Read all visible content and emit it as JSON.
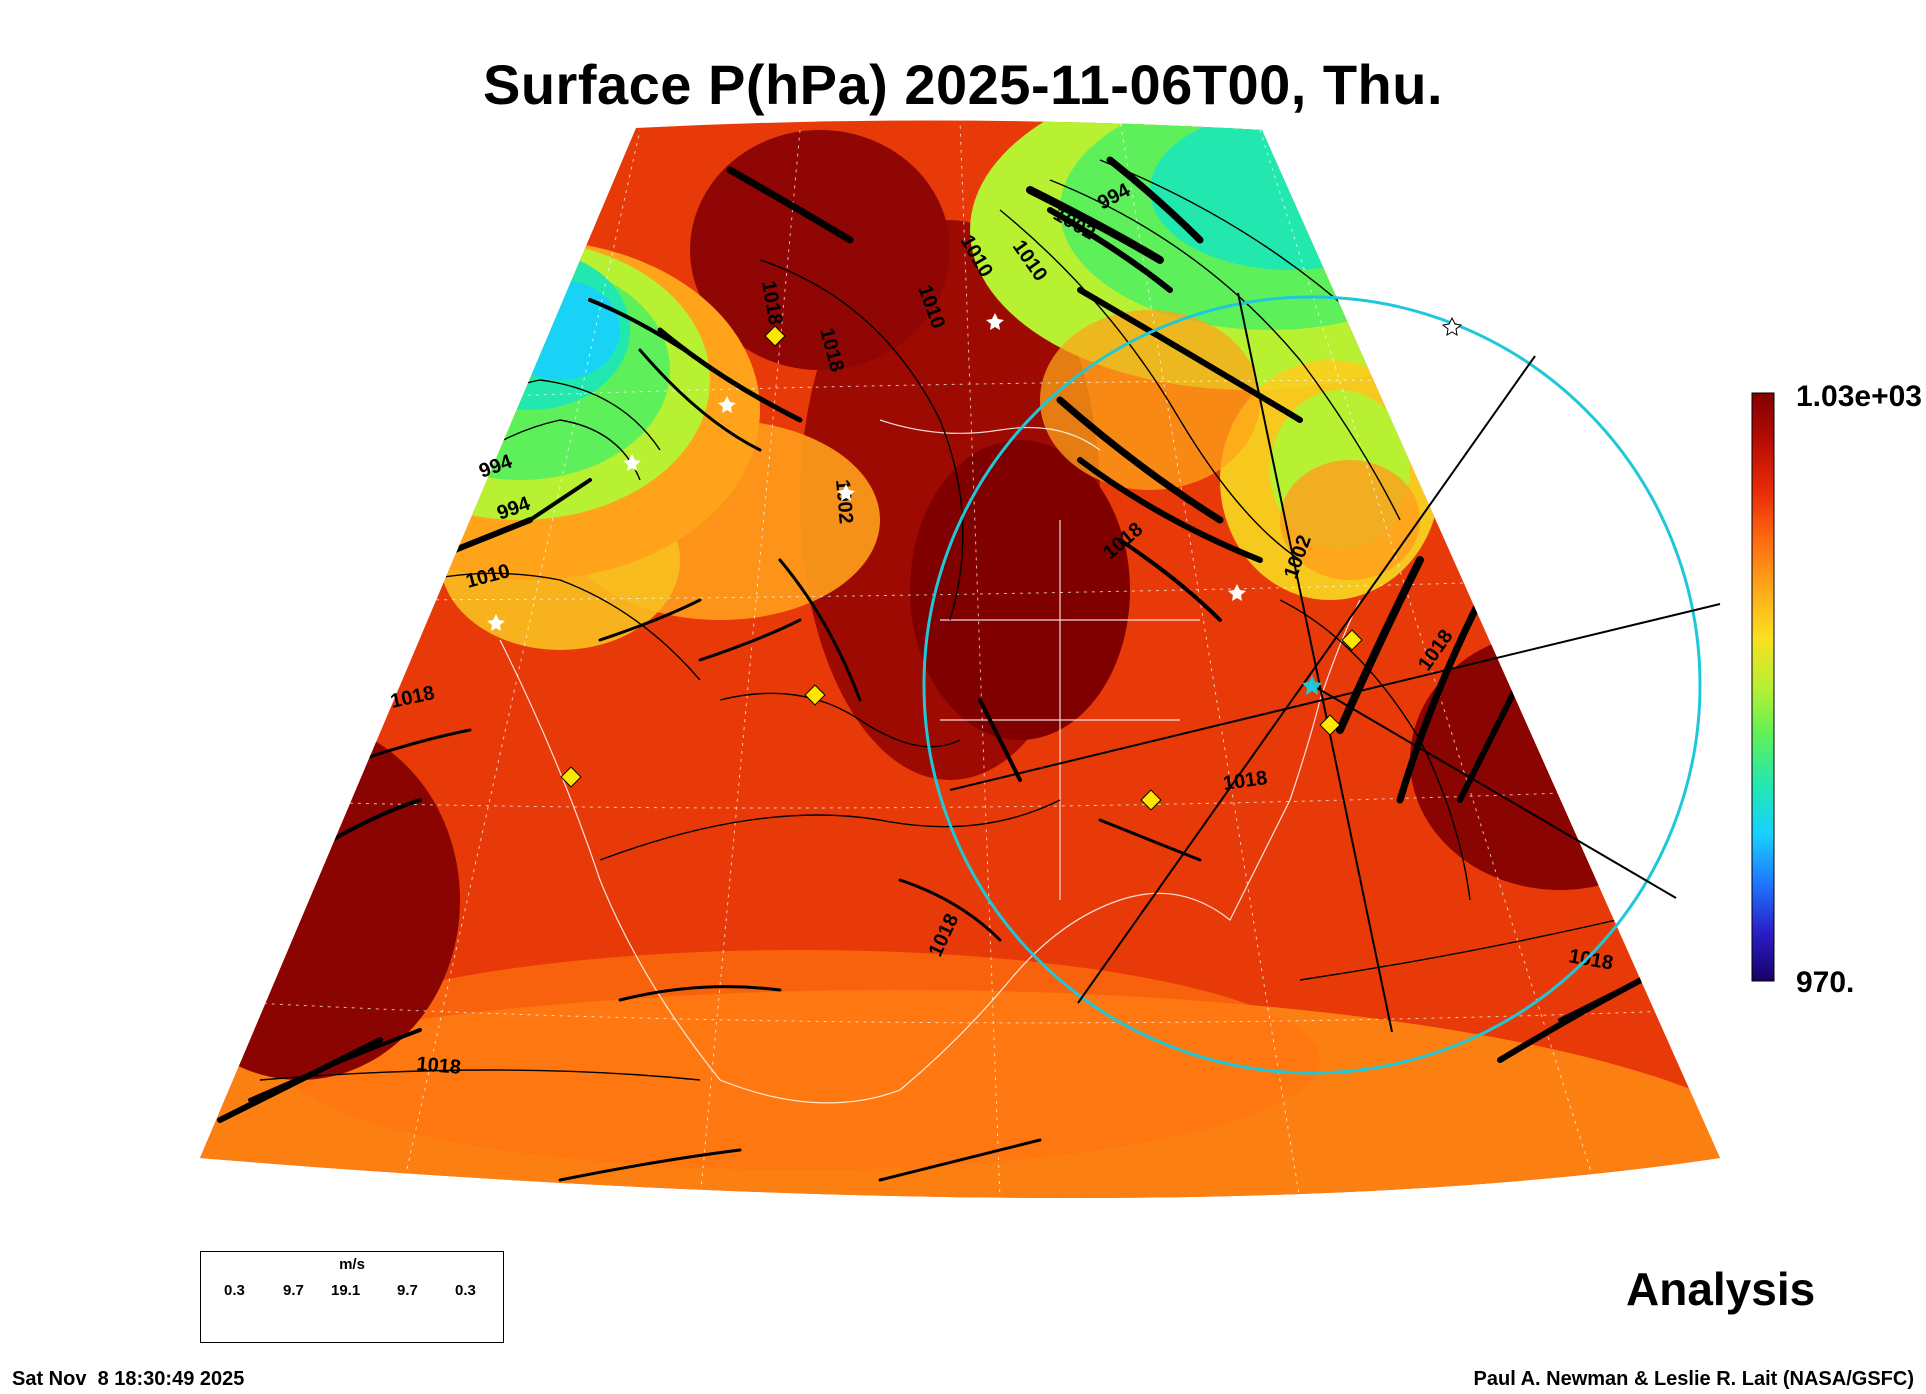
{
  "title": "Surface P(hPa) 2025-11-06T00, Thu.",
  "colorbar": {
    "max_label": "1.03e+03",
    "min_label": "970.",
    "max_value": 1030,
    "min_value": 970,
    "colors": [
      "#1a0066",
      "#2a1ec8",
      "#1e78ff",
      "#18d0ff",
      "#22e8b0",
      "#5ef05a",
      "#b8f032",
      "#f8e020",
      "#ffa81a",
      "#ff6a10",
      "#e82c08",
      "#b80c04",
      "#800000"
    ]
  },
  "contour_labels": [
    "994",
    "1002",
    "1010",
    "1018",
    "1018",
    "1010",
    "1002",
    "994",
    "1018",
    "1010",
    "1002",
    "1018",
    "1018",
    "1018",
    "1018",
    "1018",
    "1010",
    "1018",
    "994"
  ],
  "cross_section": {
    "circle_color": "#1ec8d8",
    "line_color": "#000000"
  },
  "marker_colors": {
    "diamond": "#ffe600",
    "star": "#ffffff"
  },
  "wind_legend": {
    "unit": "m/s",
    "values": [
      "0.3",
      "9.7",
      "19.1",
      "9.7",
      "0.3"
    ]
  },
  "analysis_label": "Analysis",
  "timestamp": "Sat Nov  8 18:30:49 2025",
  "credits": "Paul A. Newman & Leslie R. Lait (NASA/GSFC)"
}
